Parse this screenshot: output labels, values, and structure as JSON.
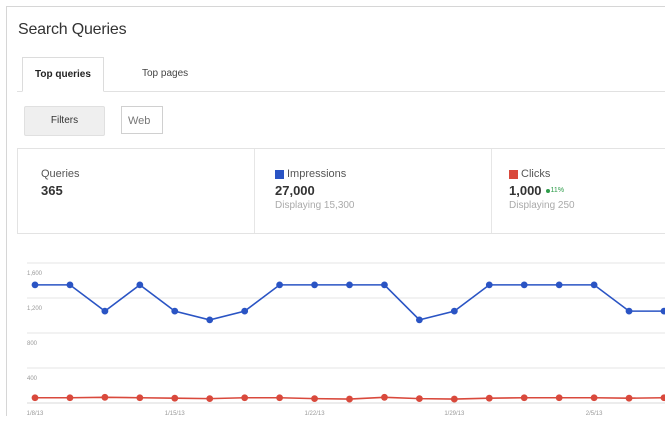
{
  "page": {
    "title": "Search Queries"
  },
  "tabs": [
    {
      "label": "Top queries",
      "active": true
    },
    {
      "label": "Top pages",
      "active": false
    }
  ],
  "toolbar": {
    "filters_label": "Filters",
    "search_type": "Web"
  },
  "metrics": {
    "queries": {
      "label": "Queries",
      "value": "365"
    },
    "impressions": {
      "label": "Impressions",
      "value": "27,000",
      "sub": "Displaying 15,300",
      "color": "#2a54c4"
    },
    "clicks": {
      "label": "Clicks",
      "value": "1,000",
      "delta": "11%",
      "sub": "Displaying 250",
      "color": "#d9493c",
      "delta_color": "#2e9c4a"
    }
  },
  "chart_data": {
    "type": "line",
    "ylim": [
      0,
      1600
    ],
    "y_ticks": [
      {
        "value": 1600,
        "label": "1,600"
      },
      {
        "value": 1200,
        "label": "1,200"
      },
      {
        "value": 800,
        "label": "800"
      },
      {
        "value": 400,
        "label": "400"
      }
    ],
    "x_tick_labels": [
      {
        "index": 0,
        "label": "1/8/13"
      },
      {
        "index": 4,
        "label": "1/15/13"
      },
      {
        "index": 8,
        "label": "1/22/13"
      },
      {
        "index": 12,
        "label": "1/29/13"
      },
      {
        "index": 16,
        "label": "2/5/13"
      }
    ],
    "grid": true,
    "series": [
      {
        "color": "#2a54c4",
        "values": [
          1350,
          1350,
          1050,
          1350,
          1050,
          950,
          1050,
          1350,
          1350,
          1350,
          1350,
          950,
          1050,
          1350,
          1350,
          1350,
          1350,
          1050,
          1050
        ]
      },
      {
        "color": "#d9493c",
        "values": [
          60,
          60,
          65,
          60,
          55,
          50,
          60,
          60,
          50,
          45,
          65,
          50,
          45,
          55,
          60,
          60,
          60,
          55,
          60
        ]
      }
    ]
  }
}
